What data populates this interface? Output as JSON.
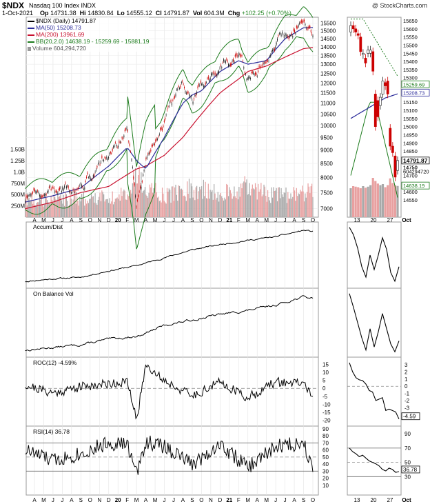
{
  "header": {
    "symbol": "$NDX",
    "name": "Nasdaq 100 Index INDX",
    "watermark": "@ StockCharts.com",
    "date": "1-Oct-2021",
    "open_label": "Op",
    "open": "14731.38",
    "high_label": "Hi",
    "high": "14830.84",
    "low_label": "Lo",
    "low": "14555.12",
    "close_label": "Cl",
    "close": "14791.87",
    "vol_label": "Vol",
    "vol": "604.3M",
    "chg_label": "Chg",
    "chg": "+102.25 (+0.70%)"
  },
  "legend": {
    "price": "$NDX (Daily) 14791.87",
    "ma50": "MA(50) 15208.73",
    "ma200": "MA(200) 13961.69",
    "bb": "BB(20,2.0) 14638.19 - 15259.69 - 15881.19",
    "volume": "Volume 604,294,720"
  },
  "colors": {
    "ma50": "#2a2a9a",
    "ma200": "#c8102e",
    "bb": "#1a7a1a",
    "up": "#222222",
    "down": "#cc0000",
    "volume_up": "#a9a9a9",
    "volume_down": "#e8a0a0",
    "border": "#999999"
  },
  "chart_data": [
    {
      "type": "line",
      "panel": "price",
      "y_scale": "log",
      "ylim": [
        6750,
        15900
      ],
      "y_ticks": [
        "7000",
        "7500",
        "8000",
        "8500",
        "9000",
        "9500",
        "10000",
        "10500",
        "11000",
        "11500",
        "12000",
        "12500",
        "13000",
        "13500",
        "14000",
        "14500",
        "15000",
        "15500"
      ],
      "volume_ticks": [
        "250M",
        "500M",
        "750M",
        "1.0B",
        "1.25B",
        "1.50B"
      ],
      "x_ticks": [
        "A",
        "M",
        "J",
        "J",
        "A",
        "S",
        "O",
        "N",
        "D",
        "20",
        "F",
        "M",
        "A",
        "M",
        "J",
        "J",
        "A",
        "S",
        "O",
        "N",
        "D",
        "21",
        "F",
        "M",
        "A",
        "M",
        "J",
        "J",
        "A",
        "S",
        "O"
      ],
      "x": [
        "2019-03",
        "2019-06",
        "2019-09",
        "2019-12",
        "2020-02",
        "2020-03",
        "2020-04",
        "2020-06",
        "2020-08",
        "2020-09",
        "2020-10",
        "2020-12",
        "2021-02",
        "2021-03",
        "2021-05",
        "2021-07",
        "2021-09",
        "2021-10"
      ],
      "series": [
        {
          "name": "$NDX (Daily)",
          "values": [
            7300,
            7500,
            7700,
            8700,
            9700,
            7100,
            8500,
            10000,
            12000,
            11200,
            11700,
            12900,
            13700,
            12300,
            13200,
            14900,
            15600,
            14792
          ]
        },
        {
          "name": "MA(50)",
          "values": [
            7200,
            7400,
            7650,
            8400,
            9100,
            8600,
            8300,
            9500,
            11000,
            11400,
            11600,
            12600,
            13200,
            13000,
            13200,
            14500,
            15200,
            15209
          ]
        },
        {
          "name": "MA(200)",
          "values": [
            7000,
            7200,
            7500,
            7700,
            8100,
            8300,
            8400,
            8800,
            9500,
            10000,
            10500,
            11500,
            12200,
            12600,
            12900,
            13400,
            13900,
            13962
          ]
        },
        {
          "name": "Volume",
          "unit": "M",
          "values": [
            400,
            380,
            420,
            430,
            520,
            900,
            640,
            480,
            560,
            640,
            600,
            560,
            620,
            680,
            520,
            480,
            500,
            604
          ]
        }
      ]
    },
    {
      "type": "bar",
      "panel": "price-zoom",
      "x_ticks": [
        "13",
        "20",
        "27",
        "Oct"
      ],
      "y_ticks": [
        "14550",
        "14600",
        "14650",
        "14700",
        "14750",
        "14800",
        "14850",
        "14900",
        "14950",
        "15000",
        "15050",
        "15100",
        "15150",
        "15200",
        "15250",
        "15300",
        "15350",
        "15400",
        "15450",
        "15500",
        "15550",
        "15600",
        "15650"
      ],
      "value_labels": [
        "15259.69",
        "15208.73",
        "14791.87",
        "14750",
        "604294720",
        "14638.19"
      ],
      "categories": [
        "09-03",
        "09-07",
        "09-08",
        "09-09",
        "09-10",
        "09-13",
        "09-14",
        "09-15",
        "09-16",
        "09-17",
        "09-20",
        "09-21",
        "09-22",
        "09-23",
        "09-24",
        "09-27",
        "09-28",
        "09-29",
        "09-30",
        "10-01"
      ],
      "series": [
        {
          "name": "Open",
          "values": [
            15580,
            15620,
            15600,
            15570,
            15550,
            15440,
            15420,
            15450,
            15450,
            15460,
            15200,
            15160,
            15130,
            15200,
            15270,
            15280,
            14990,
            14880,
            14820,
            14731
          ]
        },
        {
          "name": "Close",
          "values": [
            15620,
            15600,
            15580,
            15560,
            15460,
            15450,
            15390,
            15470,
            15470,
            15340,
            15000,
            15060,
            15180,
            15280,
            15250,
            15200,
            14880,
            14840,
            14690,
            14792
          ]
        },
        {
          "name": "Volume",
          "unit": "M",
          "values": [
            560,
            600,
            590,
            580,
            560,
            600,
            570,
            590,
            620,
            760,
            700,
            650,
            620,
            640,
            580,
            620,
            750,
            660,
            620,
            604
          ]
        }
      ]
    },
    {
      "type": "line",
      "panel": "accum-dist",
      "title": "Accum/Dist",
      "x": [
        "2019-03",
        "2019-06",
        "2019-09",
        "2019-12",
        "2020-03",
        "2020-06",
        "2020-09",
        "2020-12",
        "2021-03",
        "2021-06",
        "2021-09",
        "2021-10"
      ],
      "series": [
        {
          "name": "Accum/Dist",
          "values": [
            0.0,
            0.05,
            0.08,
            0.2,
            0.3,
            0.45,
            0.6,
            0.7,
            0.78,
            0.85,
            0.97,
            0.95
          ]
        }
      ]
    },
    {
      "type": "line",
      "panel": "obv",
      "title": "On Balance Vol",
      "x": [
        "2019-03",
        "2019-06",
        "2019-09",
        "2019-12",
        "2020-03",
        "2020-06",
        "2020-09",
        "2020-12",
        "2021-03",
        "2021-06",
        "2021-09",
        "2021-10"
      ],
      "series": [
        {
          "name": "On Balance Vol",
          "values": [
            0.0,
            0.05,
            0.1,
            0.2,
            0.25,
            0.45,
            0.55,
            0.65,
            0.72,
            0.82,
            0.97,
            0.94
          ]
        }
      ]
    },
    {
      "type": "line",
      "panel": "roc",
      "title": "ROC(12) -4.59%",
      "ylim": [
        -22,
        17
      ],
      "y_ticks": [
        "15",
        "10",
        "5",
        "0",
        "-5",
        "-10",
        "-15",
        "-20"
      ],
      "zoom_y_ticks": [
        "3",
        "2",
        "1",
        "0",
        "-1",
        "-2",
        "-3"
      ],
      "zoom_value_label": "-4.59",
      "x": [
        "2019-03",
        "2019-06",
        "2019-09",
        "2019-12",
        "2020-02",
        "2020-03",
        "2020-04",
        "2020-06",
        "2020-09",
        "2020-12",
        "2021-03",
        "2021-06",
        "2021-09",
        "2021-10"
      ],
      "series": [
        {
          "name": "ROC(12)",
          "values": [
            2,
            -3,
            1,
            3,
            4,
            -20,
            15,
            5,
            -5,
            4,
            -6,
            4,
            3,
            -4.59
          ]
        }
      ]
    },
    {
      "type": "line",
      "panel": "rsi",
      "title": "RSI(14) 36.78",
      "ylim": [
        0,
        90
      ],
      "y_ticks": [
        "90",
        "80",
        "70",
        "60",
        "50",
        "40",
        "30",
        "20",
        "10"
      ],
      "zoom_y_ticks": [
        "90",
        "70",
        "50",
        "30"
      ],
      "zoom_value_label": "36.78",
      "x": [
        "2019-03",
        "2019-06",
        "2019-09",
        "2019-12",
        "2020-02",
        "2020-03",
        "2020-04",
        "2020-06",
        "2020-09",
        "2020-12",
        "2021-03",
        "2021-06",
        "2021-09",
        "2021-10"
      ],
      "series": [
        {
          "name": "RSI(14)",
          "values": [
            60,
            45,
            55,
            70,
            68,
            25,
            72,
            65,
            40,
            68,
            35,
            65,
            70,
            36.78
          ]
        }
      ]
    }
  ]
}
